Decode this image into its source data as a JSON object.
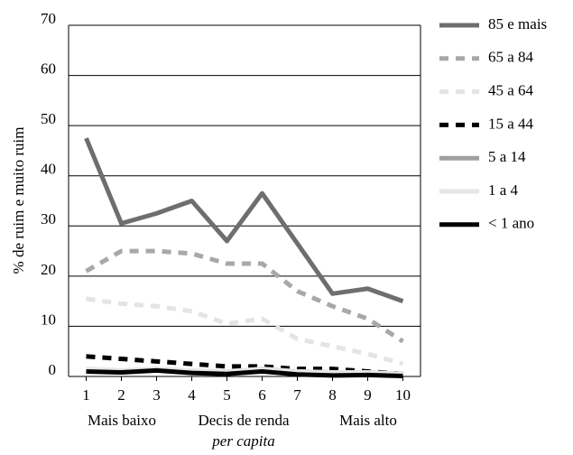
{
  "chart_data": {
    "type": "line",
    "x": [
      1,
      2,
      3,
      4,
      5,
      6,
      7,
      8,
      9,
      10
    ],
    "xlim": [
      0.5,
      10.5
    ],
    "xticks": [
      1,
      2,
      3,
      4,
      5,
      6,
      7,
      8,
      9,
      10
    ],
    "ylim": [
      0,
      70
    ],
    "yticks": [
      0,
      10,
      20,
      30,
      40,
      50,
      60,
      70
    ],
    "grid": true,
    "y_label": "% de ruim e muito ruim",
    "x_label": "Decis de renda",
    "x_label_sub": "per capita",
    "x_low_label": "Mais baixo",
    "x_high_label": "Mais alto",
    "legend": "right",
    "series": [
      {
        "name": "85 e mais",
        "color": "#6e6e6e",
        "style": "solid",
        "values": [
          47.5,
          30.5,
          32.5,
          35,
          27,
          36.5,
          26.5,
          16.5,
          17.5,
          15
        ]
      },
      {
        "name": "65 a 84",
        "color": "#a8a8a8",
        "style": "dashed",
        "values": [
          21,
          25,
          25,
          24.5,
          22.5,
          22.5,
          17,
          14,
          11.5,
          7
        ]
      },
      {
        "name": "45 a 64",
        "color": "#e4e4e4",
        "style": "dashed",
        "values": [
          15.5,
          14.5,
          14,
          13,
          10.5,
          11.5,
          7.5,
          6,
          4.5,
          2.5
        ]
      },
      {
        "name": "15 a 44",
        "color": "#000000",
        "style": "dashed",
        "values": [
          4,
          3.5,
          3,
          2.5,
          2,
          2,
          1.5,
          1.5,
          1,
          0.5
        ]
      },
      {
        "name": "5 a 14",
        "color": "#a0a0a0",
        "style": "solid",
        "values": [
          1,
          1,
          1.5,
          1,
          0.8,
          1.5,
          1,
          0.8,
          0.8,
          0.5
        ]
      },
      {
        "name": "1 a 4",
        "color": "#e6e6e6",
        "style": "solid",
        "values": [
          1.5,
          1.2,
          1.5,
          1.2,
          1,
          1.5,
          1,
          0.8,
          0.8,
          0.5
        ]
      },
      {
        "name": "< 1 ano",
        "color": "#000000",
        "style": "solid",
        "values": [
          1,
          0.8,
          1.2,
          0.7,
          0.5,
          1,
          0.4,
          0.2,
          0.3,
          0.1
        ]
      }
    ]
  }
}
